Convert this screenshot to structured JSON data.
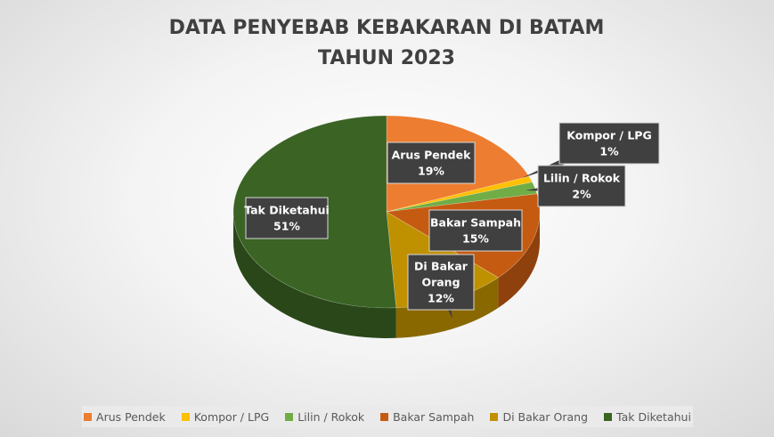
{
  "chart_data": {
    "type": "pie",
    "title_lines": [
      "DATA PENYEBAB KEBAKARAN DI BATAM",
      "TAHUN 2023"
    ],
    "slices": [
      {
        "name": "Arus Pendek",
        "value": 19,
        "label": "19%",
        "color": "#ed7d31"
      },
      {
        "name": "Kompor / LPG",
        "value": 1,
        "label": "1%",
        "color": "#ffc000"
      },
      {
        "name": "Lilin / Rokok",
        "value": 2,
        "label": "2%",
        "color": "#70ad47"
      },
      {
        "name": "Bakar Sampah",
        "value": 15,
        "label": "15%",
        "color": "#c55a11"
      },
      {
        "name": "Di Bakar Orang",
        "value": 12,
        "label": "12%",
        "color": "#bf9000"
      },
      {
        "name": "Tak Diketahui",
        "value": 51,
        "label": "51%",
        "color": "#3a6324"
      }
    ],
    "pie_3d": true,
    "legend_position": "bottom",
    "label_style": "callout"
  }
}
